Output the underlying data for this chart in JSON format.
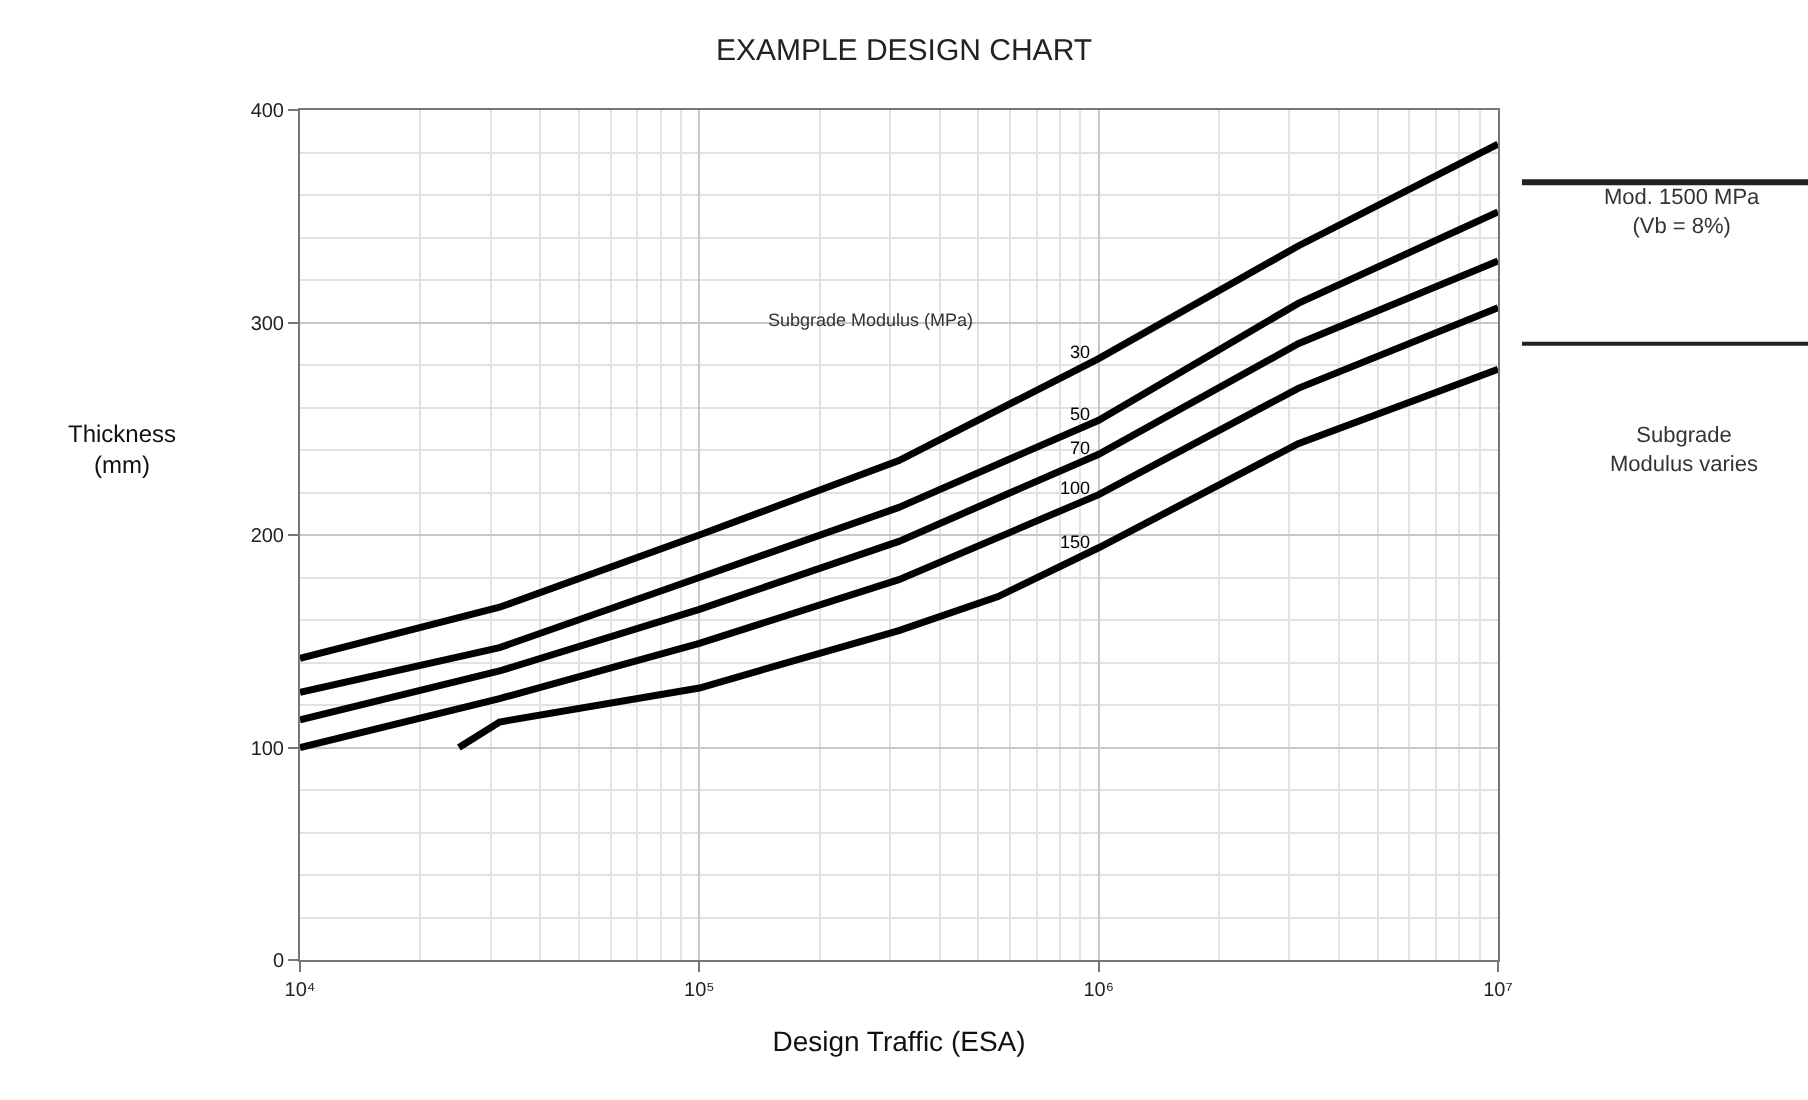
{
  "chart_data": {
    "type": "line",
    "title": "EXAMPLE DESIGN CHART",
    "xlabel": "Design Traffic (ESA)",
    "ylabel": "Thickness (mm)",
    "legend_title": "Subgrade Modulus (MPa)",
    "log": "x",
    "grid": true,
    "legend": false,
    "marker": "none",
    "line_style": "solid",
    "xlim": [
      10000,
      10000000
    ],
    "xticks": [
      {
        "value": 10000,
        "label": "10⁴"
      },
      {
        "value": 100000,
        "label": "10⁵"
      },
      {
        "value": 1000000,
        "label": "10⁶"
      },
      {
        "value": 10000000,
        "label": "10⁷"
      }
    ],
    "ylim": [
      0,
      400
    ],
    "yticks": [
      0,
      100,
      200,
      300,
      400
    ],
    "series": [
      {
        "name": "30",
        "color": "#000000",
        "x": [
          10000,
          31600,
          100000,
          316000,
          1000000,
          3160000,
          10000000
        ],
        "values": [
          142,
          166,
          200,
          235,
          283,
          336,
          384
        ]
      },
      {
        "name": "50",
        "color": "#000000",
        "x": [
          10000,
          31600,
          100000,
          316000,
          1000000,
          3160000,
          10000000
        ],
        "values": [
          126,
          147,
          180,
          213,
          254,
          309,
          352
        ]
      },
      {
        "name": "70",
        "color": "#000000",
        "x": [
          10000,
          31600,
          100000,
          316000,
          1000000,
          3160000,
          10000000
        ],
        "values": [
          113,
          136,
          165,
          197,
          238,
          290,
          329
        ]
      },
      {
        "name": "100",
        "color": "#000000",
        "x": [
          10000,
          31600,
          100000,
          316000,
          1000000,
          3160000,
          10000000
        ],
        "values": [
          100,
          123,
          149,
          179,
          219,
          269,
          307
        ]
      },
      {
        "name": "150",
        "color": "#000000",
        "x": [
          25000,
          31600,
          100000,
          316000,
          560000,
          1000000,
          3160000,
          10000000
        ],
        "values": [
          100,
          112,
          128,
          155,
          171,
          194,
          243,
          278
        ]
      }
    ],
    "annotations": [
      "Mod. 1500 MPa\n(Vb = 8%)",
      "Subgrade\nModulus varies"
    ]
  }
}
